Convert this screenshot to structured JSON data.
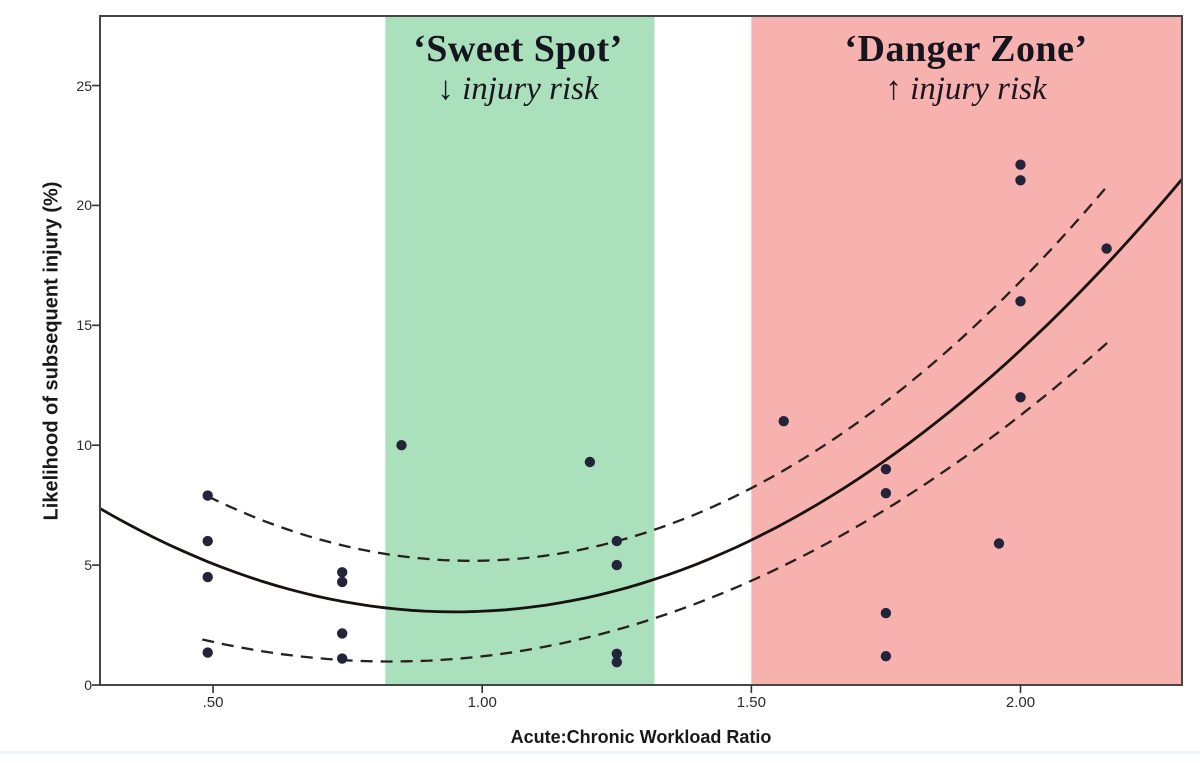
{
  "chart_data": {
    "type": "scatter",
    "title": "",
    "xlabel": "Acute:Chronic Workload Ratio",
    "ylabel": "Likelihood of subsequent injury (%)",
    "xlim": [
      0.29,
      2.3
    ],
    "ylim": [
      0,
      27.9
    ],
    "grid": false,
    "legend": "none",
    "xticks": [
      {
        "value": 0.5,
        "label": ".50"
      },
      {
        "value": 1.0,
        "label": "1.00"
      },
      {
        "value": 1.5,
        "label": "1.50"
      },
      {
        "value": 2.0,
        "label": "2.00"
      }
    ],
    "yticks": [
      {
        "value": 0,
        "label": "0"
      },
      {
        "value": 5,
        "label": "5"
      },
      {
        "value": 10,
        "label": "10"
      },
      {
        "value": 15,
        "label": "15"
      },
      {
        "value": 20,
        "label": "20"
      },
      {
        "value": 25,
        "label": "25"
      }
    ],
    "zones": [
      {
        "id": "sweet-spot",
        "label": "‘Sweet Spot’",
        "sublabel": "↓ injury risk",
        "x_start": 0.82,
        "x_end": 1.32,
        "color": "#abe0bd"
      },
      {
        "id": "danger-zone",
        "label": "‘Danger Zone’",
        "sublabel": "↑ injury risk",
        "x_start": 1.5,
        "x_end": 2.3,
        "color": "#f7b1af"
      }
    ],
    "series": [
      {
        "name": "injury-likelihood-observations",
        "type": "scatter",
        "color": "#23233a",
        "marker_radius": 5.2,
        "points": [
          [
            0.49,
            7.9
          ],
          [
            0.49,
            6.0
          ],
          [
            0.49,
            4.5
          ],
          [
            0.49,
            1.35
          ],
          [
            0.74,
            4.7
          ],
          [
            0.74,
            4.3
          ],
          [
            0.74,
            2.15
          ],
          [
            0.74,
            1.1
          ],
          [
            0.85,
            10.0
          ],
          [
            1.2,
            9.3
          ],
          [
            1.25,
            6.0
          ],
          [
            1.25,
            5.0
          ],
          [
            1.25,
            1.3
          ],
          [
            1.25,
            0.95
          ],
          [
            1.56,
            11.0
          ],
          [
            1.75,
            9.0
          ],
          [
            1.75,
            8.0
          ],
          [
            1.75,
            3.0
          ],
          [
            1.75,
            1.2
          ],
          [
            1.96,
            5.9
          ],
          [
            2.0,
            21.7
          ],
          [
            2.0,
            21.05
          ],
          [
            2.0,
            16.0
          ],
          [
            2.0,
            12.0
          ],
          [
            2.16,
            18.2
          ]
        ]
      },
      {
        "name": "fitted-mean-curve",
        "type": "quadratic-curve",
        "style": "solid",
        "color": "#17110f",
        "stroke_width": 2.8,
        "a": 9.9,
        "vertex_x": 0.95,
        "vertex_y": 3.05,
        "x_start": 0.29,
        "x_end": 2.3
      },
      {
        "name": "upper-confidence-curve",
        "type": "quadratic-curve",
        "style": "dashed",
        "color": "#26201f",
        "stroke_width": 2.3,
        "a": 11.2,
        "vertex_x": 0.98,
        "vertex_y": 5.18,
        "x_start": 0.49,
        "x_end": 2.16
      },
      {
        "name": "lower-confidence-curve",
        "type": "quadratic-curve",
        "style": "dashed",
        "color": "#26201f",
        "stroke_width": 2.3,
        "a": 7.5,
        "vertex_x": 0.83,
        "vertex_y": 0.98,
        "x_start": 0.48,
        "x_end": 2.17
      }
    ],
    "frame_color": "#464646",
    "tick_color": "#333333"
  }
}
